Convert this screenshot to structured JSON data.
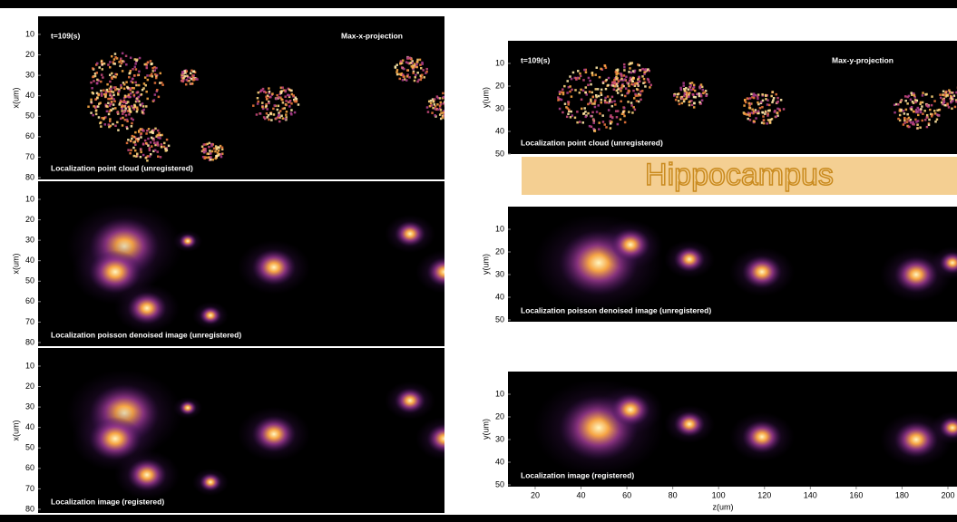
{
  "left_panels": [
    {
      "y_label": "x(um)",
      "yticks": [
        10,
        20,
        30,
        40,
        50,
        60,
        70,
        80
      ],
      "time": "t=109(s)",
      "projection": "Max-x-projection",
      "caption": "Localization point cloud (unregistered)"
    },
    {
      "y_label": "x(um)",
      "yticks": [
        10,
        20,
        30,
        40,
        50,
        60,
        70,
        80
      ],
      "caption": "Localization poisson denoised image (unregistered)"
    },
    {
      "y_label": "x(um)",
      "yticks": [
        10,
        20,
        30,
        40,
        50,
        60,
        70,
        80
      ],
      "caption": "Localization image (registered)"
    }
  ],
  "right_panels": [
    {
      "y_label": "y(um)",
      "yticks": [
        10,
        20,
        30,
        40,
        50
      ],
      "time": "t=109(s)",
      "projection": "Max-y-projection",
      "caption": "Localization point cloud (unregistered)"
    },
    {
      "y_label": "y(um)",
      "yticks": [
        10,
        20,
        30,
        40,
        50
      ],
      "caption": "Localization poisson denoised image (unregistered)"
    },
    {
      "y_label": "y(um)",
      "yticks": [
        10,
        20,
        30,
        40,
        50
      ],
      "caption": "Localization image (registered)"
    }
  ],
  "banner": "Hippocampus",
  "x_axis": {
    "label": "z(um)",
    "ticks": [
      20,
      40,
      60,
      80,
      100,
      120,
      140,
      160,
      180,
      200
    ]
  }
}
